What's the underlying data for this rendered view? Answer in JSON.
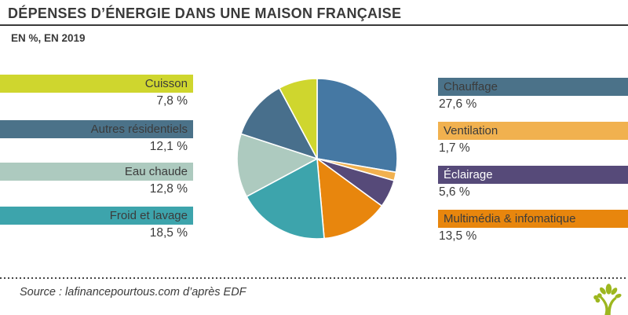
{
  "title": "DÉPENSES D’ÉNERGIE DANS UNE MAISON FRANÇAISE",
  "subtitle": "EN %, EN 2019",
  "source": "Source : lafinancepourtous.com d’après EDF",
  "chart_data": {
    "type": "pie",
    "title": "Dépenses d’énergie dans une maison française",
    "unit": "EN %, EN 2019",
    "categories": [
      "Chauffage",
      "Ventilation",
      "Éclairage",
      "Multimédia & infomatique",
      "Froid et lavage",
      "Eau chaude",
      "Autres résidentiels",
      "Cuisson"
    ],
    "values": [
      27.6,
      1.7,
      5.6,
      13.5,
      18.5,
      12.8,
      12.1,
      7.8
    ],
    "colors": [
      "#4578a3",
      "#f1b14f",
      "#564a79",
      "#e8860d",
      "#3da4ac",
      "#adcabf",
      "#486f8c",
      "#cfd62e"
    ],
    "start_angle_deg": 0,
    "direction": "clockwise",
    "legend_position": "flanking-left-and-right",
    "grid": false
  },
  "items": {
    "cuisson": {
      "label": "Cuisson",
      "display": "7,8 %",
      "bar_color": "#cfd62e",
      "text_color": "#3b3b3b"
    },
    "autres": {
      "label": "Autres résidentiels",
      "display": "12,1 %",
      "bar_color": "#4b7289",
      "text_color": "#3b3b3b"
    },
    "eau": {
      "label": "Eau chaude",
      "display": "12,8 %",
      "bar_color": "#adcabf",
      "text_color": "#3b3b3b"
    },
    "froid": {
      "label": "Froid et lavage",
      "display": "18,5 %",
      "bar_color": "#3da4ac",
      "text_color": "#3b3b3b"
    },
    "chauffage": {
      "label": "Chauffage",
      "display": "27,6 %",
      "bar_color": "#4b7289",
      "text_color": "#3b3b3b"
    },
    "ventilation": {
      "label": "Ventilation",
      "display": "1,7 %",
      "bar_color": "#f1b14f",
      "text_color": "#3b3b3b"
    },
    "eclairage": {
      "label": "Éclairage",
      "display": "5,6 %",
      "bar_color": "#564a79",
      "text_color": "#ffffff"
    },
    "multimedia": {
      "label": "Multimédia & infomatique",
      "display": "13,5 %",
      "bar_color": "#e8860d",
      "text_color": "#3b3b3b"
    }
  },
  "logo_color": "#9db71f"
}
